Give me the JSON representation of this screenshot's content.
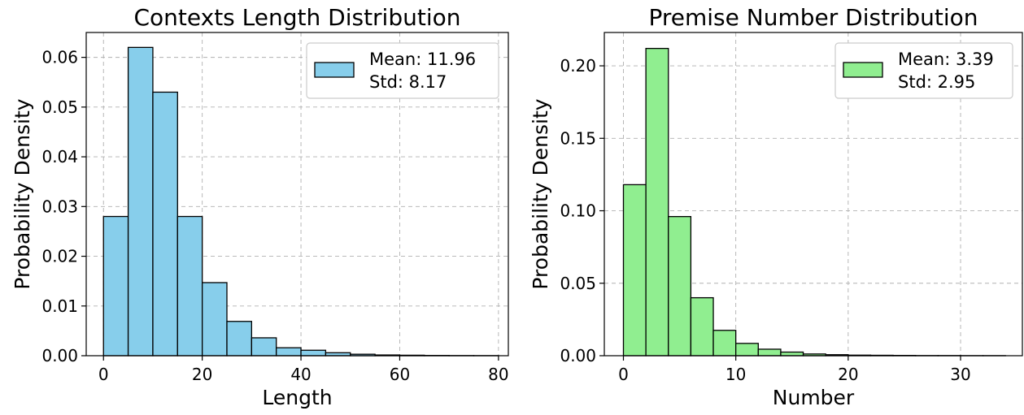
{
  "chart_data": [
    {
      "type": "bar",
      "title": "Contexts Length Distribution",
      "xlabel": "Length",
      "ylabel": "Probability Density",
      "xlim": [
        -3.5,
        82
      ],
      "ylim": [
        0,
        0.065
      ],
      "xticks": [
        0,
        20,
        40,
        60,
        80
      ],
      "xtick_labels": [
        "0",
        "20",
        "40",
        "60",
        "80"
      ],
      "yticks": [
        0,
        0.01,
        0.02,
        0.03,
        0.04,
        0.05,
        0.06
      ],
      "ytick_labels": [
        "0.00",
        "0.01",
        "0.02",
        "0.03",
        "0.04",
        "0.05",
        "0.06"
      ],
      "grid": true,
      "color": "#87ceeb",
      "bin_edges": [
        0,
        5,
        10,
        15,
        20,
        25,
        30,
        35,
        40,
        45,
        50,
        55,
        60,
        65,
        70,
        75,
        80
      ],
      "values": [
        0.028,
        0.062,
        0.053,
        0.028,
        0.0147,
        0.0069,
        0.0036,
        0.0016,
        0.0011,
        0.0006,
        0.0003,
        0.00015,
        0.0001,
        5e-05,
        3e-05,
        2e-05
      ],
      "legend": {
        "position": "top-right",
        "lines": [
          "Mean: 11.96",
          "Std: 8.17"
        ]
      }
    },
    {
      "type": "bar",
      "title": "Premise Number Distribution",
      "xlabel": "Number",
      "ylabel": "Probability Density",
      "xlim": [
        -1.7,
        35.5
      ],
      "ylim": [
        0,
        0.223
      ],
      "xticks": [
        0,
        10,
        20,
        30
      ],
      "xtick_labels": [
        "0",
        "10",
        "20",
        "30"
      ],
      "yticks": [
        0,
        0.05,
        0.1,
        0.15,
        0.2
      ],
      "ytick_labels": [
        "0.00",
        "0.05",
        "0.10",
        "0.15",
        "0.20"
      ],
      "grid": true,
      "color": "#90ee90",
      "bin_edges": [
        0,
        2,
        4,
        6,
        8,
        10,
        12,
        14,
        16,
        18,
        20,
        22,
        24,
        26,
        28,
        30,
        32,
        34
      ],
      "values": [
        0.118,
        0.212,
        0.096,
        0.04,
        0.0175,
        0.0085,
        0.0045,
        0.0025,
        0.0012,
        0.0007,
        0.0004,
        0.0003,
        0.0002,
        0.0001,
        0.0001,
        5e-05,
        5e-05
      ],
      "legend": {
        "position": "top-right",
        "lines": [
          "Mean: 3.39",
          "Std: 2.95"
        ]
      }
    }
  ]
}
